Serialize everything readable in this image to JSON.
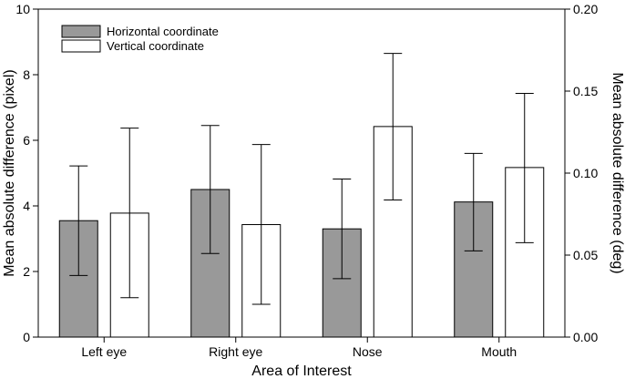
{
  "chart_data": {
    "type": "bar",
    "title": "",
    "xlabel": "Area of Interest",
    "ylabel": "Mean absolute difference (pixel)",
    "ylabel_right": "Mean absolute difference (deg)",
    "categories": [
      "Left eye",
      "Right eye",
      "Nose",
      "Mouth"
    ],
    "ylim": [
      0,
      10
    ],
    "yticks": [
      "0",
      "2",
      "4",
      "6",
      "8",
      "10"
    ],
    "y2lim": [
      0,
      0.2
    ],
    "y2ticks": [
      "0.00",
      "0.05",
      "0.10",
      "0.15",
      "0.20"
    ],
    "legend_position": "top-left",
    "grid": false,
    "series": [
      {
        "name": "Horizontal coordinate",
        "color": "#999999",
        "values": [
          3.55,
          4.5,
          3.3,
          4.12
        ],
        "error_low": [
          1.88,
          2.55,
          1.78,
          2.63
        ],
        "error_high": [
          5.22,
          6.45,
          4.82,
          5.6
        ]
      },
      {
        "name": "Vertical coordinate",
        "color": "#ffffff",
        "values": [
          3.78,
          3.43,
          6.42,
          5.17
        ],
        "error_low": [
          1.2,
          1.0,
          4.18,
          2.88
        ],
        "error_high": [
          6.37,
          5.87,
          8.65,
          7.43
        ]
      }
    ]
  }
}
